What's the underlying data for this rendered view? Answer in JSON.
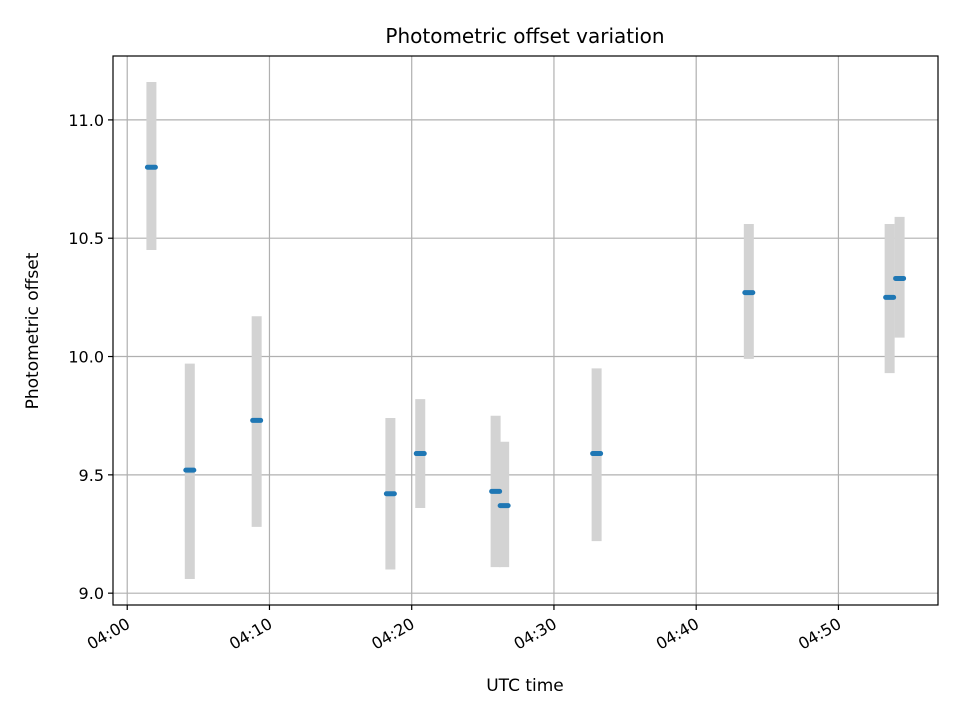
{
  "chart_data": {
    "type": "errorbar",
    "title": "Photometric offset variation",
    "xlabel": "UTC time",
    "ylabel": "Photometric offset",
    "xlim_minutes": [
      -1.0,
      57.0
    ],
    "ylim": [
      8.95,
      11.27
    ],
    "x_ticks": [
      {
        "minutes": 0,
        "label": "04:00"
      },
      {
        "minutes": 10,
        "label": "04:10"
      },
      {
        "minutes": 20,
        "label": "04:20"
      },
      {
        "minutes": 30,
        "label": "04:30"
      },
      {
        "minutes": 40,
        "label": "04:40"
      },
      {
        "minutes": 50,
        "label": "04:50"
      }
    ],
    "y_ticks": [
      {
        "value": 9.0,
        "label": "9.0"
      },
      {
        "value": 9.5,
        "label": "9.5"
      },
      {
        "value": 10.0,
        "label": "10.0"
      },
      {
        "value": 10.5,
        "label": "10.5"
      },
      {
        "value": 11.0,
        "label": "11.0"
      }
    ],
    "grid": true,
    "marker_color": "#1f77b4",
    "errorbar_color": "#d3d3d3",
    "points": [
      {
        "minutes": 1.7,
        "value": 10.8,
        "low": 10.45,
        "high": 11.16
      },
      {
        "minutes": 4.4,
        "value": 9.52,
        "low": 9.06,
        "high": 9.97
      },
      {
        "minutes": 9.1,
        "value": 9.73,
        "low": 9.28,
        "high": 10.17
      },
      {
        "minutes": 18.5,
        "value": 9.42,
        "low": 9.1,
        "high": 9.74
      },
      {
        "minutes": 20.6,
        "value": 9.59,
        "low": 9.36,
        "high": 9.82
      },
      {
        "minutes": 25.9,
        "value": 9.43,
        "low": 9.11,
        "high": 9.75
      },
      {
        "minutes": 26.5,
        "value": 9.37,
        "low": 9.11,
        "high": 9.64
      },
      {
        "minutes": 33.0,
        "value": 9.59,
        "low": 9.22,
        "high": 9.95
      },
      {
        "minutes": 43.7,
        "value": 10.27,
        "low": 9.99,
        "high": 10.56
      },
      {
        "minutes": 53.6,
        "value": 10.25,
        "low": 9.93,
        "high": 10.56
      },
      {
        "minutes": 54.3,
        "value": 10.33,
        "low": 10.08,
        "high": 10.59
      }
    ]
  }
}
